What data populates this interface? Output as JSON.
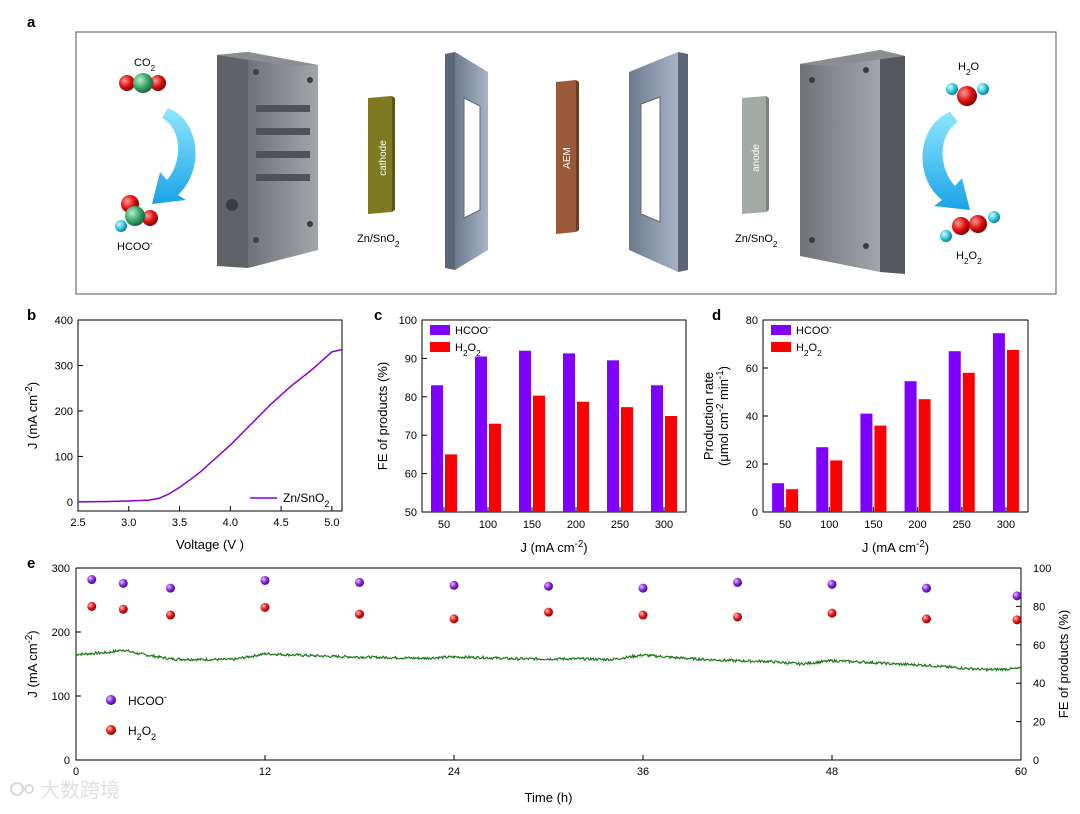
{
  "panels": {
    "a": {
      "letter": "a",
      "labels": {
        "co2": "CO2",
        "hcoo": "HCOO-",
        "h2o": "H2O",
        "h2o2": "H2O2",
        "cathode": "cathode",
        "aem": "AEM",
        "anode": "anode",
        "catalyst_left": "Zn/SnO2",
        "catalyst_right": "Zn/SnO2"
      }
    },
    "b": {
      "letter": "b"
    },
    "c": {
      "letter": "c"
    },
    "d": {
      "letter": "d"
    },
    "e": {
      "letter": "e"
    }
  },
  "watermark": "大数跨境",
  "colors": {
    "purple": "#7F00FF",
    "red": "#FF0000",
    "green": "#1A7A1A",
    "lsv": "#8B00CC"
  },
  "chart_data": [
    {
      "id": "b",
      "type": "line",
      "title": "",
      "xlabel": "Voltage (V )",
      "ylabel": "J (mA cm-2)",
      "xlim": [
        2.5,
        5.1
      ],
      "ylim": [
        -20,
        400
      ],
      "xticks": [
        2.5,
        3.0,
        3.5,
        4.0,
        4.5,
        5.0
      ],
      "xtick_labels": [
        "2.5",
        "3.0",
        "3.5",
        "4.0",
        "4.5",
        "5.0"
      ],
      "yticks": [
        0,
        100,
        200,
        300,
        400
      ],
      "ytick_labels": [
        "0",
        "100",
        "200",
        "300",
        "400"
      ],
      "legend": "bottom-right",
      "series": [
        {
          "name": "Zn/SnO2",
          "x": [
            2.5,
            2.8,
            3.0,
            3.2,
            3.3,
            3.4,
            3.5,
            3.6,
            3.7,
            3.8,
            3.9,
            4.0,
            4.2,
            4.4,
            4.5,
            4.6,
            4.8,
            4.9,
            5.0,
            5.1
          ],
          "y": [
            0,
            1,
            2,
            4,
            8,
            18,
            32,
            48,
            65,
            85,
            105,
            125,
            170,
            215,
            235,
            255,
            290,
            310,
            330,
            335
          ]
        }
      ]
    },
    {
      "id": "c",
      "type": "bar",
      "xlabel": "J (mA cm-2)",
      "ylabel": "FE of products (%)",
      "ylim": [
        50,
        100
      ],
      "yticks": [
        50,
        60,
        70,
        80,
        90,
        100
      ],
      "ytick_labels": [
        "50",
        "60",
        "70",
        "80",
        "90",
        "100"
      ],
      "categories": [
        "50",
        "100",
        "150",
        "200",
        "250",
        "300"
      ],
      "legend": "top-left",
      "series": [
        {
          "name": "HCOO-",
          "values": [
            83,
            90.5,
            92,
            91.3,
            89.5,
            83
          ]
        },
        {
          "name": "H2O2",
          "values": [
            65,
            73,
            80.3,
            78.7,
            77.3,
            75
          ]
        }
      ]
    },
    {
      "id": "d",
      "type": "bar",
      "xlabel": "J (mA cm-2)",
      "ylabel": "Production rate (μmol cm-2 min-1)",
      "ylim": [
        0,
        80
      ],
      "yticks": [
        0,
        20,
        40,
        60,
        80
      ],
      "ytick_labels": [
        "0",
        "20",
        "40",
        "60",
        "80"
      ],
      "categories": [
        "50",
        "100",
        "150",
        "200",
        "250",
        "300"
      ],
      "legend": "top-left",
      "series": [
        {
          "name": "HCOO-",
          "values": [
            12,
            27,
            41,
            54.5,
            67,
            74.5
          ]
        },
        {
          "name": "H2O2",
          "values": [
            9.5,
            21.5,
            36,
            47,
            58,
            67.5
          ]
        }
      ]
    },
    {
      "id": "e",
      "type": "line+scatter",
      "xlabel": "Time (h)",
      "ylabel": "J (mA cm-2)",
      "ylabel_right": "FE of products (%)",
      "xlim": [
        0,
        60
      ],
      "ylim": [
        0,
        300
      ],
      "ylim_right": [
        0,
        100
      ],
      "xticks": [
        0,
        12,
        24,
        36,
        48,
        60
      ],
      "xtick_labels": [
        "0",
        "12",
        "24",
        "36",
        "48",
        "60"
      ],
      "yticks": [
        0,
        100,
        200,
        300
      ],
      "ytick_labels": [
        "0",
        "100",
        "200",
        "300"
      ],
      "yticks_right": [
        0,
        20,
        40,
        60,
        80,
        100
      ],
      "ytick_labels_right": [
        "0",
        "20",
        "40",
        "60",
        "80",
        "100"
      ],
      "legend": "bottom-left",
      "current_series": {
        "name": "J",
        "x": [
          0,
          2,
          3,
          4,
          6,
          8,
          10,
          12,
          14,
          16,
          18,
          20,
          22,
          24,
          26,
          28,
          30,
          32,
          34,
          36,
          38,
          40,
          42,
          44,
          46,
          48,
          50,
          52,
          54,
          56,
          58,
          60
        ],
        "y": [
          165,
          168,
          172,
          166,
          158,
          157,
          157,
          166,
          164,
          162,
          161,
          160,
          159,
          161,
          160,
          158,
          158,
          158,
          157,
          164,
          160,
          157,
          155,
          154,
          150,
          155,
          153,
          150,
          148,
          144,
          141,
          143
        ]
      },
      "scatter_series": [
        {
          "name": "HCOO-",
          "x": [
            1,
            3,
            6,
            12,
            18,
            24,
            30,
            36,
            42,
            48,
            54,
            60
          ],
          "y": [
            94,
            92,
            89.5,
            93.5,
            92.5,
            91,
            90.5,
            89.5,
            92.5,
            91.5,
            89.5,
            85.5
          ]
        },
        {
          "name": "H2O2",
          "x": [
            1,
            3,
            6,
            12,
            18,
            24,
            30,
            36,
            42,
            48,
            54,
            60
          ],
          "y": [
            80,
            78.5,
            75.5,
            79.5,
            76,
            73.5,
            77,
            75.5,
            74.5,
            76.5,
            73.5,
            73
          ]
        }
      ]
    }
  ]
}
